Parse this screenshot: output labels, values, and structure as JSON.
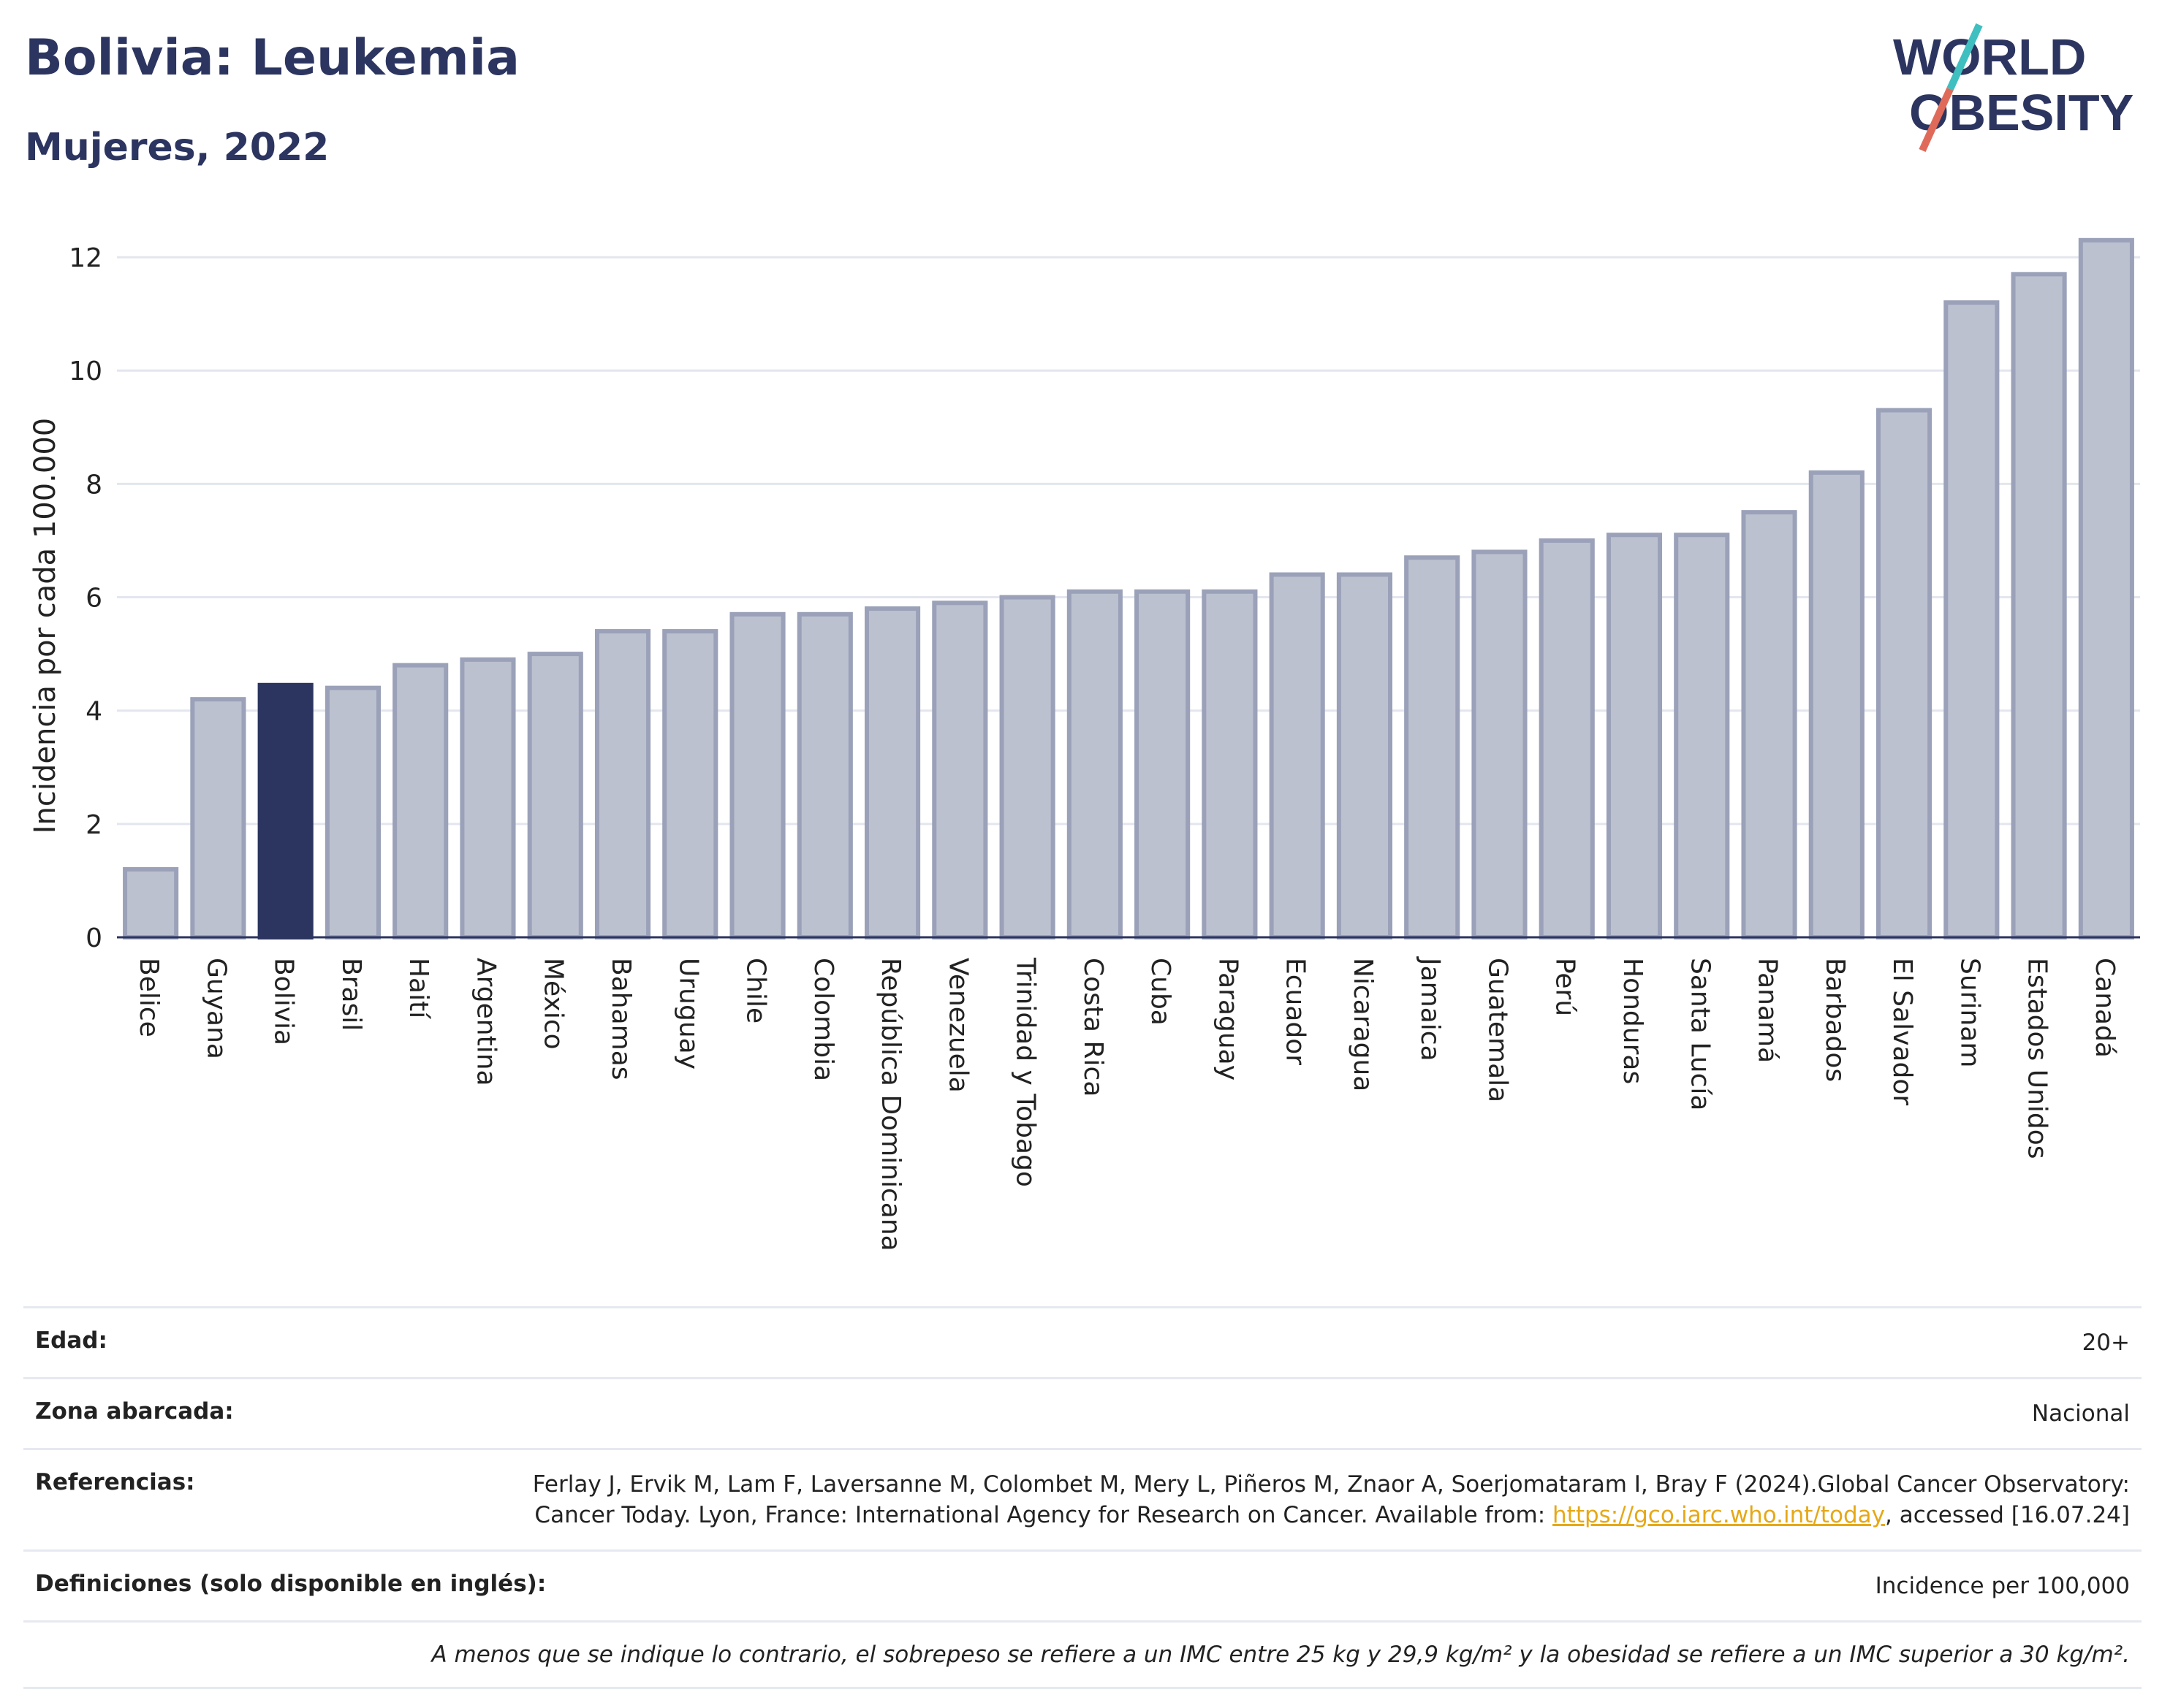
{
  "header": {
    "title": "Bolivia: Leukemia",
    "subtitle": "Mujeres, 2022"
  },
  "logo": {
    "line1": "WORLD",
    "line2": "OBESITY"
  },
  "colors": {
    "bar": "#bcc1d0",
    "bar_stroke": "#9aa1b8",
    "highlight": "#2c3560",
    "accent_teal": "#3fbfbf",
    "accent_red": "#e06a5a"
  },
  "chart_data": {
    "type": "bar",
    "ylabel": "Incidencia por cada 100.000",
    "ylim": [
      0,
      12.8
    ],
    "yticks": [
      0,
      2,
      4,
      6,
      8,
      10,
      12
    ],
    "grid": true,
    "highlight": "Bolivia",
    "categories": [
      "Belice",
      "Guyana",
      "Bolivia",
      "Brasil",
      "Haití",
      "Argentina",
      "México",
      "Bahamas",
      "Uruguay",
      "Chile",
      "Colombia",
      "República Dominicana",
      "Venezuela",
      "Trinidad y Tobago",
      "Costa Rica",
      "Cuba",
      "Paraguay",
      "Ecuador",
      "Nicaragua",
      "Jamaica",
      "Guatemala",
      "Perú",
      "Honduras",
      "Santa Lucía",
      "Panamá",
      "Barbados",
      "El Salvador",
      "Surinam",
      "Estados Unidos",
      "Canadá"
    ],
    "values": [
      1.2,
      4.2,
      4.45,
      4.4,
      4.8,
      4.9,
      5.0,
      5.4,
      5.4,
      5.7,
      5.7,
      5.8,
      5.9,
      6.0,
      6.1,
      6.1,
      6.1,
      6.4,
      6.4,
      6.7,
      6.8,
      7.0,
      7.1,
      7.1,
      7.5,
      8.2,
      9.3,
      11.2,
      11.7,
      12.3
    ]
  },
  "meta": {
    "age_label": "Edad:",
    "age_value": "20+",
    "zone_label": "Zona abarcada:",
    "zone_value": "Nacional",
    "refs_label": "Referencias:",
    "refs_text": "Ferlay J, Ervik M, Lam F, Laversanne M, Colombet M, Mery L, Piñeros M, Znaor A, Soerjomataram I, Bray F (2024).Global Cancer Observatory: Cancer Today. Lyon, France: International Agency for Research on Cancer. Available from: ",
    "refs_link": "https://gco.iarc.who.int/today",
    "refs_tail": ", accessed [16.07.24]",
    "defs_label": "Definiciones (solo disponible en inglés):",
    "defs_value": "Incidence per 100,000",
    "note": "A menos que se indique lo contrario, el sobrepeso se refiere a un IMC entre 25 kg y 29,9 kg/m² y la obesidad se refiere a un IMC superior a 30 kg/m²."
  }
}
